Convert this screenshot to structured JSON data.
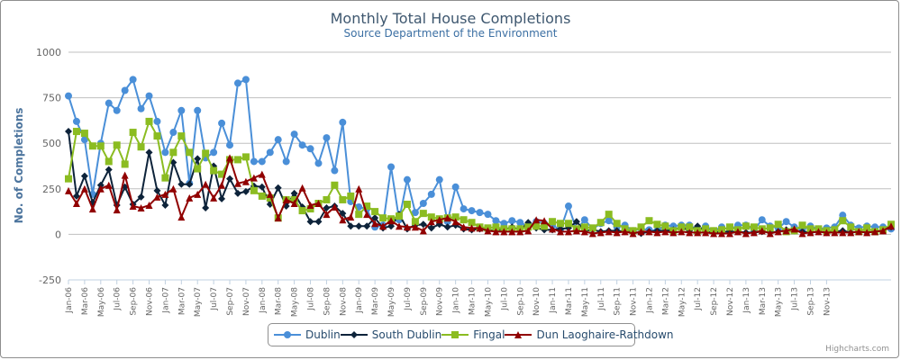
{
  "chart_data": {
    "type": "line",
    "title": "Monthly Total House Completions",
    "subtitle": "Source Department of the Environment",
    "ylabel": "No. of Completions",
    "xlabel": "",
    "ylim": [
      -250,
      1000
    ],
    "yticks": [
      -250,
      0,
      250,
      500,
      750,
      1000
    ],
    "grid": true,
    "legend_position": "bottom-center",
    "tick_labels": [
      "Jan-06",
      "Mar-06",
      "May-06",
      "Jul-06",
      "Sep-06",
      "Nov-06",
      "Jan-07",
      "Mar-07",
      "May-07",
      "Jul-07",
      "Sep-07",
      "Nov-07",
      "Jan-08",
      "Mar-08",
      "May-08",
      "Jul-08",
      "Sep-08",
      "Nov-08",
      "Jan-09",
      "Mar-09",
      "May-09",
      "Jul-09",
      "Sep-09",
      "Nov-09",
      "Jan-10",
      "Mar-10",
      "May-10",
      "Jul-10",
      "Sep-10",
      "Nov-10",
      "Jan-11",
      "Mar-11",
      "May-11",
      "Jul-11",
      "Sep-11",
      "Nov-11",
      "Jan-12",
      "Mar-12",
      "May-12",
      "Jul-12",
      "Sep-12",
      "Nov-12",
      "Jan-13",
      "Mar-13",
      "May-13",
      "Jul-13",
      "Sep-13",
      "Nov-13"
    ],
    "series": [
      {
        "name": "Dublin",
        "color": "#4a8fd8",
        "marker": "circle",
        "values": [
          760,
          620,
          520,
          220,
          500,
          720,
          680,
          790,
          850,
          690,
          760,
          620,
          450,
          560,
          680,
          280,
          680,
          420,
          450,
          610,
          490,
          830,
          850,
          400,
          400,
          450,
          520,
          400,
          550,
          490,
          470,
          390,
          530,
          350,
          615,
          180,
          150,
          140,
          40,
          50,
          370,
          80,
          300,
          120,
          170,
          220,
          300,
          70,
          260,
          140,
          130,
          120,
          110,
          75,
          60,
          75,
          65,
          45,
          70,
          60,
          50,
          25,
          155,
          25,
          80,
          30,
          60,
          75,
          40,
          50,
          20,
          30,
          25,
          20,
          50,
          45,
          50,
          50,
          25,
          45,
          20,
          40,
          25,
          50,
          50,
          25,
          80,
          45,
          35,
          70,
          40,
          25,
          45,
          30,
          35,
          40,
          105,
          50,
          35,
          45,
          40,
          40,
          30
        ]
      },
      {
        "name": "South Dublin",
        "color": "#0d233a",
        "marker": "diamond",
        "values": [
          565,
          210,
          320,
          175,
          270,
          355,
          160,
          260,
          165,
          205,
          450,
          240,
          160,
          395,
          275,
          275,
          415,
          145,
          375,
          195,
          305,
          225,
          235,
          265,
          260,
          165,
          255,
          155,
          225,
          150,
          70,
          70,
          145,
          155,
          115,
          45,
          45,
          45,
          90,
          35,
          45,
          110,
          30,
          50,
          55,
          35,
          55,
          40,
          50,
          30,
          25,
          30,
          20,
          25,
          25,
          40,
          25,
          65,
          35,
          25,
          25,
          30,
          35,
          70,
          20,
          25,
          15,
          20,
          20,
          15,
          15,
          5,
          15,
          20,
          20,
          25,
          40,
          20,
          45,
          15,
          10,
          15,
          15,
          15,
          10,
          10,
          15,
          10,
          15,
          25,
          20,
          15,
          10,
          15,
          10,
          15,
          20,
          10,
          15,
          10,
          15,
          20,
          40
        ]
      },
      {
        "name": "Fingal",
        "color": "#8bbc21",
        "marker": "square",
        "values": [
          305,
          565,
          555,
          485,
          485,
          400,
          490,
          385,
          560,
          480,
          620,
          540,
          310,
          450,
          540,
          450,
          360,
          445,
          350,
          330,
          410,
          410,
          425,
          240,
          210,
          200,
          90,
          190,
          190,
          130,
          140,
          170,
          190,
          270,
          190,
          210,
          110,
          155,
          125,
          90,
          85,
          100,
          165,
          70,
          115,
          95,
          85,
          90,
          95,
          80,
          65,
          40,
          35,
          40,
          30,
          30,
          30,
          40,
          45,
          45,
          70,
          60,
          60,
          30,
          40,
          35,
          65,
          110,
          60,
          30,
          20,
          40,
          75,
          55,
          45,
          20,
          40,
          40,
          20,
          30,
          20,
          25,
          40,
          25,
          45,
          40,
          30,
          35,
          55,
          15,
          20,
          50,
          30,
          30,
          20,
          25,
          75,
          40,
          15,
          35,
          15,
          25,
          55
        ]
      },
      {
        "name": "Dun Laoghaire-Rathdown",
        "color": "#910000",
        "marker": "triangle",
        "values": [
          240,
          170,
          250,
          140,
          250,
          270,
          135,
          325,
          155,
          145,
          160,
          205,
          220,
          250,
          95,
          200,
          220,
          275,
          200,
          270,
          420,
          280,
          290,
          310,
          330,
          220,
          90,
          190,
          170,
          255,
          160,
          170,
          110,
          150,
          80,
          95,
          250,
          110,
          60,
          45,
          75,
          45,
          40,
          40,
          20,
          70,
          80,
          90,
          70,
          40,
          35,
          35,
          20,
          15,
          15,
          15,
          15,
          20,
          80,
          75,
          30,
          15,
          15,
          20,
          15,
          5,
          10,
          15,
          10,
          15,
          5,
          15,
          15,
          10,
          15,
          10,
          15,
          10,
          10,
          10,
          5,
          5,
          5,
          15,
          5,
          10,
          20,
          5,
          15,
          20,
          30,
          5,
          10,
          15,
          10,
          10,
          10,
          10,
          15,
          10,
          15,
          20,
          45
        ]
      }
    ]
  },
  "credit": "Highcharts.com"
}
